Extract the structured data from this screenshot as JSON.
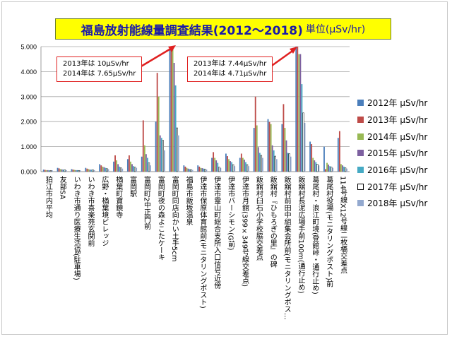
{
  "header": {
    "title": "福島放射能線量調査結果(2012〜2018)",
    "unit": "単位(µSv/hr)"
  },
  "notes": [
    {
      "lines": [
        "2013年は 10µSv/hr",
        "2014年は 7.65µSv/hr"
      ]
    },
    {
      "lines": [
        "2013年は 7.44µSv/hr",
        "2014年は 4.71µSv/hr"
      ]
    }
  ],
  "chart_data": {
    "type": "bar",
    "title": "福島放射能線量調査結果(2012〜2018)",
    "ylabel": "単位(µSv/hr)",
    "ylim": [
      0,
      5
    ],
    "yticks": [
      "0.000",
      "1.000",
      "2.000",
      "3.000",
      "4.000",
      "5.000"
    ],
    "legend_position": "right",
    "categories": [
      "狛江市内平均",
      "友部SA",
      "いわき市通り医療生活協(駐車場)",
      "いわき市喜楽苑玄関前",
      "広野・楢葉境ビレッジ",
      "楢葉町寶鏡寺",
      "富岡駅",
      "富岡町2中正門前",
      "富岡町夜の森よこたケーキ",
      "富岡町同店向かい土手5cm",
      "福島市飯坂温泉",
      "伊達市保原体育館前(モニタリングポスト)",
      "伊達市霊山町総合支所入口信号近傍",
      "伊達市バーシモン(G前)",
      "伊達市月舘(399×349号線交差点)",
      "飯舘村臼石小学校脇交差点",
      "飯舘村『ひもろぎの里』の碑",
      "飯舘村前田中組集会所前(モニタリングポス…",
      "飯舘村長泥広場手前100m(通行止め)",
      "葛尾村・浪江町境(登館峠・通行止め)",
      "葛尾村役場(モニタリングポスト)前",
      "114号線X12号線二枚橋交差点"
    ],
    "series": [
      {
        "name": "2012年 µSv/hr",
        "color": "#4a7ebb",
        "values": [
          0.08,
          0.15,
          0.1,
          0.15,
          0.3,
          0.4,
          0.5,
          0.6,
          2.0,
          5.0,
          0.25,
          0.25,
          0.55,
          0.72,
          0.55,
          1.75,
          2.1,
          1.9,
          5.0,
          1.2,
          1.0,
          1.35
        ]
      },
      {
        "name": "2013年 µSv/hr",
        "color": "#be4b48",
        "values": [
          0.07,
          0.13,
          0.08,
          0.12,
          0.25,
          0.65,
          0.65,
          2.05,
          3.95,
          5.0,
          0.2,
          0.2,
          0.78,
          0.62,
          0.72,
          3.0,
          1.98,
          2.7,
          5.0,
          1.1,
          0.1,
          1.62
        ]
      },
      {
        "name": "2014年 µSv/hr",
        "color": "#98b954",
        "values": [
          0.06,
          0.1,
          0.07,
          0.1,
          0.2,
          0.45,
          0.4,
          1.05,
          3.0,
          5.0,
          0.15,
          0.15,
          0.55,
          0.5,
          0.55,
          1.85,
          1.9,
          1.75,
          4.7,
          0.55,
          0.35,
          0.3
        ]
      },
      {
        "name": "2015年 µSv/hr",
        "color": "#7d60a0",
        "values": [
          0.06,
          0.09,
          0.06,
          0.08,
          0.18,
          0.3,
          0.3,
          0.7,
          1.45,
          4.35,
          0.12,
          0.14,
          0.45,
          0.42,
          0.48,
          0.98,
          1.05,
          1.25,
          4.7,
          0.45,
          0.28,
          0.25
        ]
      },
      {
        "name": "2016年 µSv/hr",
        "color": "#46aac4",
        "values": [
          0.05,
          0.08,
          0.06,
          0.08,
          0.15,
          0.2,
          0.22,
          0.55,
          1.35,
          3.45,
          0.1,
          0.12,
          0.35,
          0.38,
          0.38,
          0.75,
          0.85,
          0.75,
          3.5,
          0.38,
          0.22,
          0.2
        ]
      },
      {
        "name": "2017年 µSv/hr",
        "color": "#ffffff",
        "values": [
          0.05,
          0.07,
          0.05,
          0.07,
          0.12,
          0.15,
          0.18,
          0.35,
          1.25,
          1.75,
          0.08,
          0.1,
          0.18,
          0.28,
          0.28,
          0.65,
          0.62,
          0.72,
          2.35,
          0.3,
          0.18,
          0.15
        ]
      },
      {
        "name": "2018年 µSv/hr",
        "color": "#93a9cf",
        "values": [
          0.05,
          0.06,
          0.05,
          0.06,
          0.1,
          0.12,
          0.15,
          0.25,
          0.85,
          1.45,
          0.07,
          0.08,
          0.15,
          0.22,
          0.22,
          0.55,
          0.5,
          0.6,
          1.95,
          0.25,
          0.15,
          0.12
        ]
      }
    ]
  }
}
